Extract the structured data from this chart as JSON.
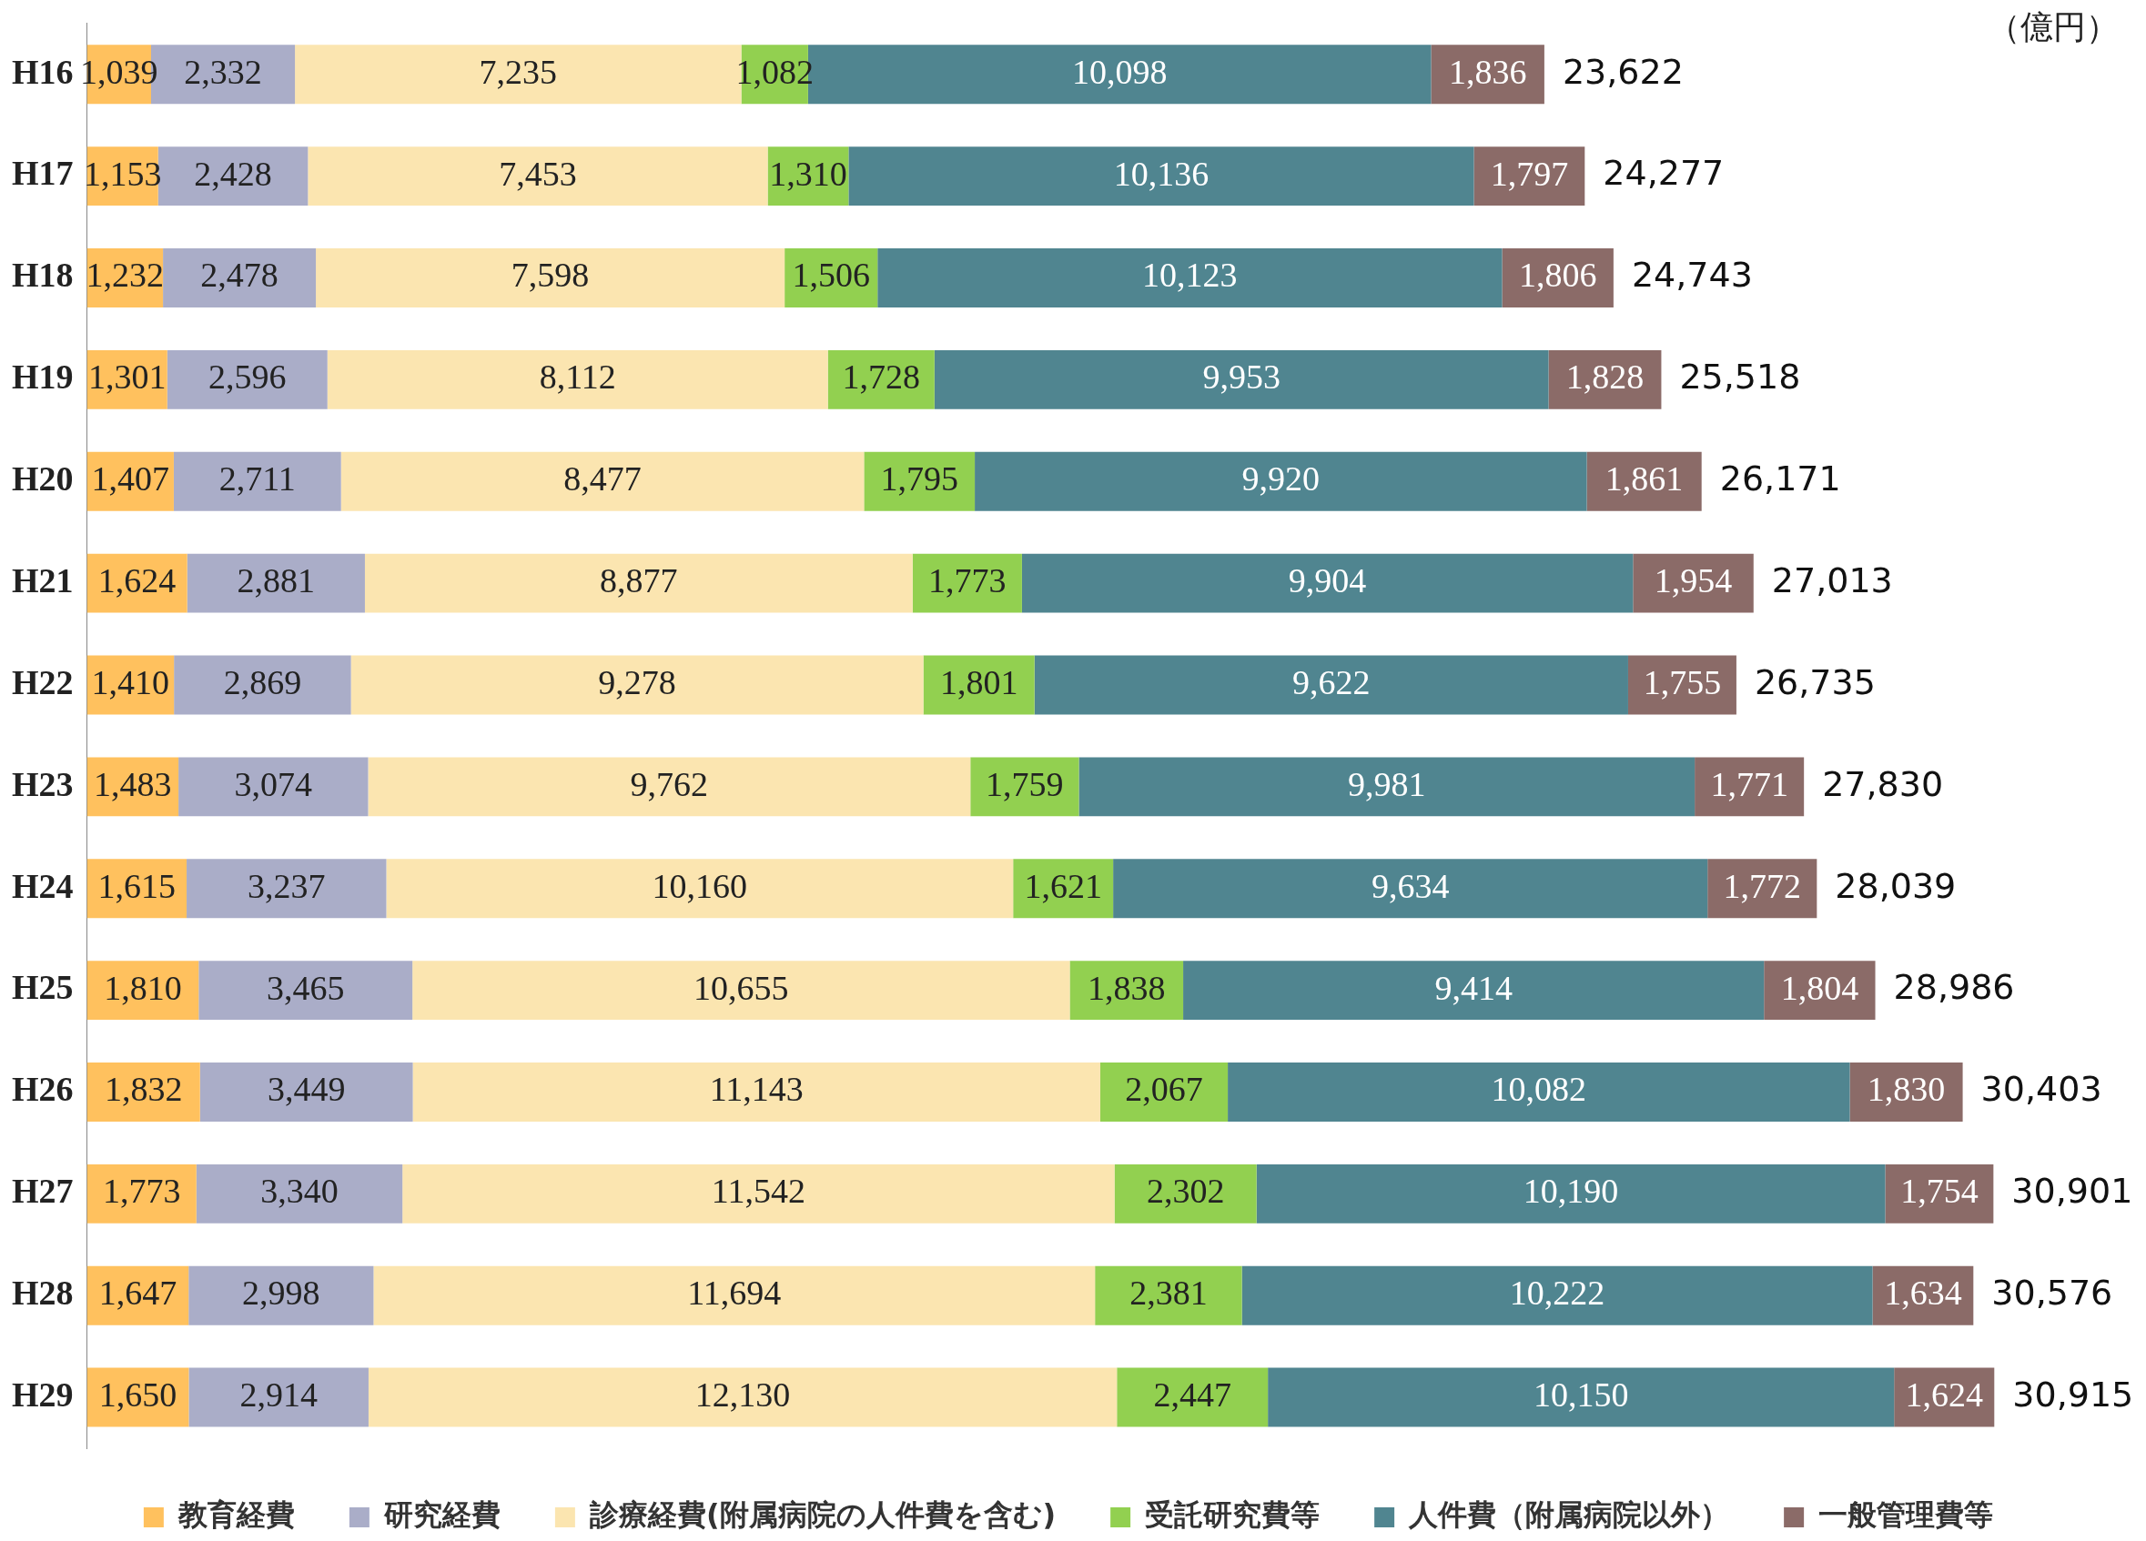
{
  "chart_data": {
    "type": "bar",
    "orientation": "horizontal",
    "stacked": true,
    "legend": "bottom",
    "tick_labels": "y",
    "annotations": [
      "（億円）"
    ],
    "categories": [
      "H16",
      "H17",
      "H18",
      "H19",
      "H20",
      "H21",
      "H22",
      "H23",
      "H24",
      "H25",
      "H26",
      "H27",
      "H28",
      "H29"
    ],
    "series": [
      {
        "name": "教育経費",
        "color": "#ffc15e",
        "values": [
          1039,
          1153,
          1232,
          1301,
          1407,
          1624,
          1410,
          1483,
          1615,
          1810,
          1832,
          1773,
          1647,
          1650
        ],
        "value_labels": [
          "1,039",
          "1,153",
          "1,232",
          "1,301",
          "1,407",
          "1,624",
          "1,410",
          "1,483",
          "1,615",
          "1,810",
          "1,832",
          "1,773",
          "1,647",
          "1,650"
        ]
      },
      {
        "name": "研究経費",
        "color": "#aaadc8",
        "values": [
          2332,
          2428,
          2478,
          2596,
          2711,
          2881,
          2869,
          3074,
          3237,
          3465,
          3449,
          3340,
          2998,
          2914
        ],
        "value_labels": [
          "2,332",
          "2,428",
          "2,478",
          "2,596",
          "2,711",
          "2,881",
          "2,869",
          "3,074",
          "3,237",
          "3,465",
          "3,449",
          "3,340",
          "2,998",
          "2,914"
        ]
      },
      {
        "name": "診療経費(附属病院の人件費を含む)",
        "color": "#fbe5b0",
        "values": [
          7235,
          7453,
          7598,
          8112,
          8477,
          8877,
          9278,
          9762,
          10160,
          10655,
          11143,
          11542,
          11694,
          12130
        ],
        "value_labels": [
          "7,235",
          "7,453",
          "7,598",
          "8,112",
          "8,477",
          "8,877",
          "9,278",
          "9,762",
          "10,160",
          "10,655",
          "11,143",
          "11,542",
          "11,694",
          "12,130"
        ]
      },
      {
        "name": "受託研究費等",
        "color": "#92d050",
        "values": [
          1082,
          1310,
          1506,
          1728,
          1795,
          1773,
          1801,
          1759,
          1621,
          1838,
          2067,
          2302,
          2381,
          2447
        ],
        "value_labels": [
          "1,082",
          "1,310",
          "1,506",
          "1,728",
          "1,795",
          "1,773",
          "1,801",
          "1,759",
          "1,621",
          "1,838",
          "2,067",
          "2,302",
          "2,381",
          "2,447"
        ]
      },
      {
        "name": "人件費（附属病院以外）",
        "color": "#508590",
        "values": [
          10098,
          10136,
          10123,
          9953,
          9920,
          9904,
          9622,
          9981,
          9634,
          9414,
          10082,
          10190,
          10222,
          10150
        ],
        "value_labels": [
          "10,098",
          "10,136",
          "10,123",
          "9,953",
          "9,920",
          "9,904",
          "9,622",
          "9,981",
          "9,634",
          "9,414",
          "10,082",
          "10,190",
          "10,222",
          "10,150"
        ]
      },
      {
        "name": "一般管理費等",
        "color": "#8b6b68",
        "values": [
          1836,
          1797,
          1806,
          1828,
          1861,
          1954,
          1755,
          1771,
          1772,
          1804,
          1830,
          1754,
          1634,
          1624
        ],
        "value_labels": [
          "1,836",
          "1,797",
          "1,806",
          "1,828",
          "1,861",
          "1,954",
          "1,755",
          "1,771",
          "1,772",
          "1,804",
          "1,830",
          "1,754",
          "1,634",
          "1,624"
        ]
      }
    ],
    "totals": [
      "23,622",
      "24,277",
      "24,743",
      "25,518",
      "26,171",
      "27,013",
      "26,735",
      "27,830",
      "28,039",
      "28,986",
      "30,403",
      "30,901",
      "30,576",
      "30,915"
    ]
  }
}
